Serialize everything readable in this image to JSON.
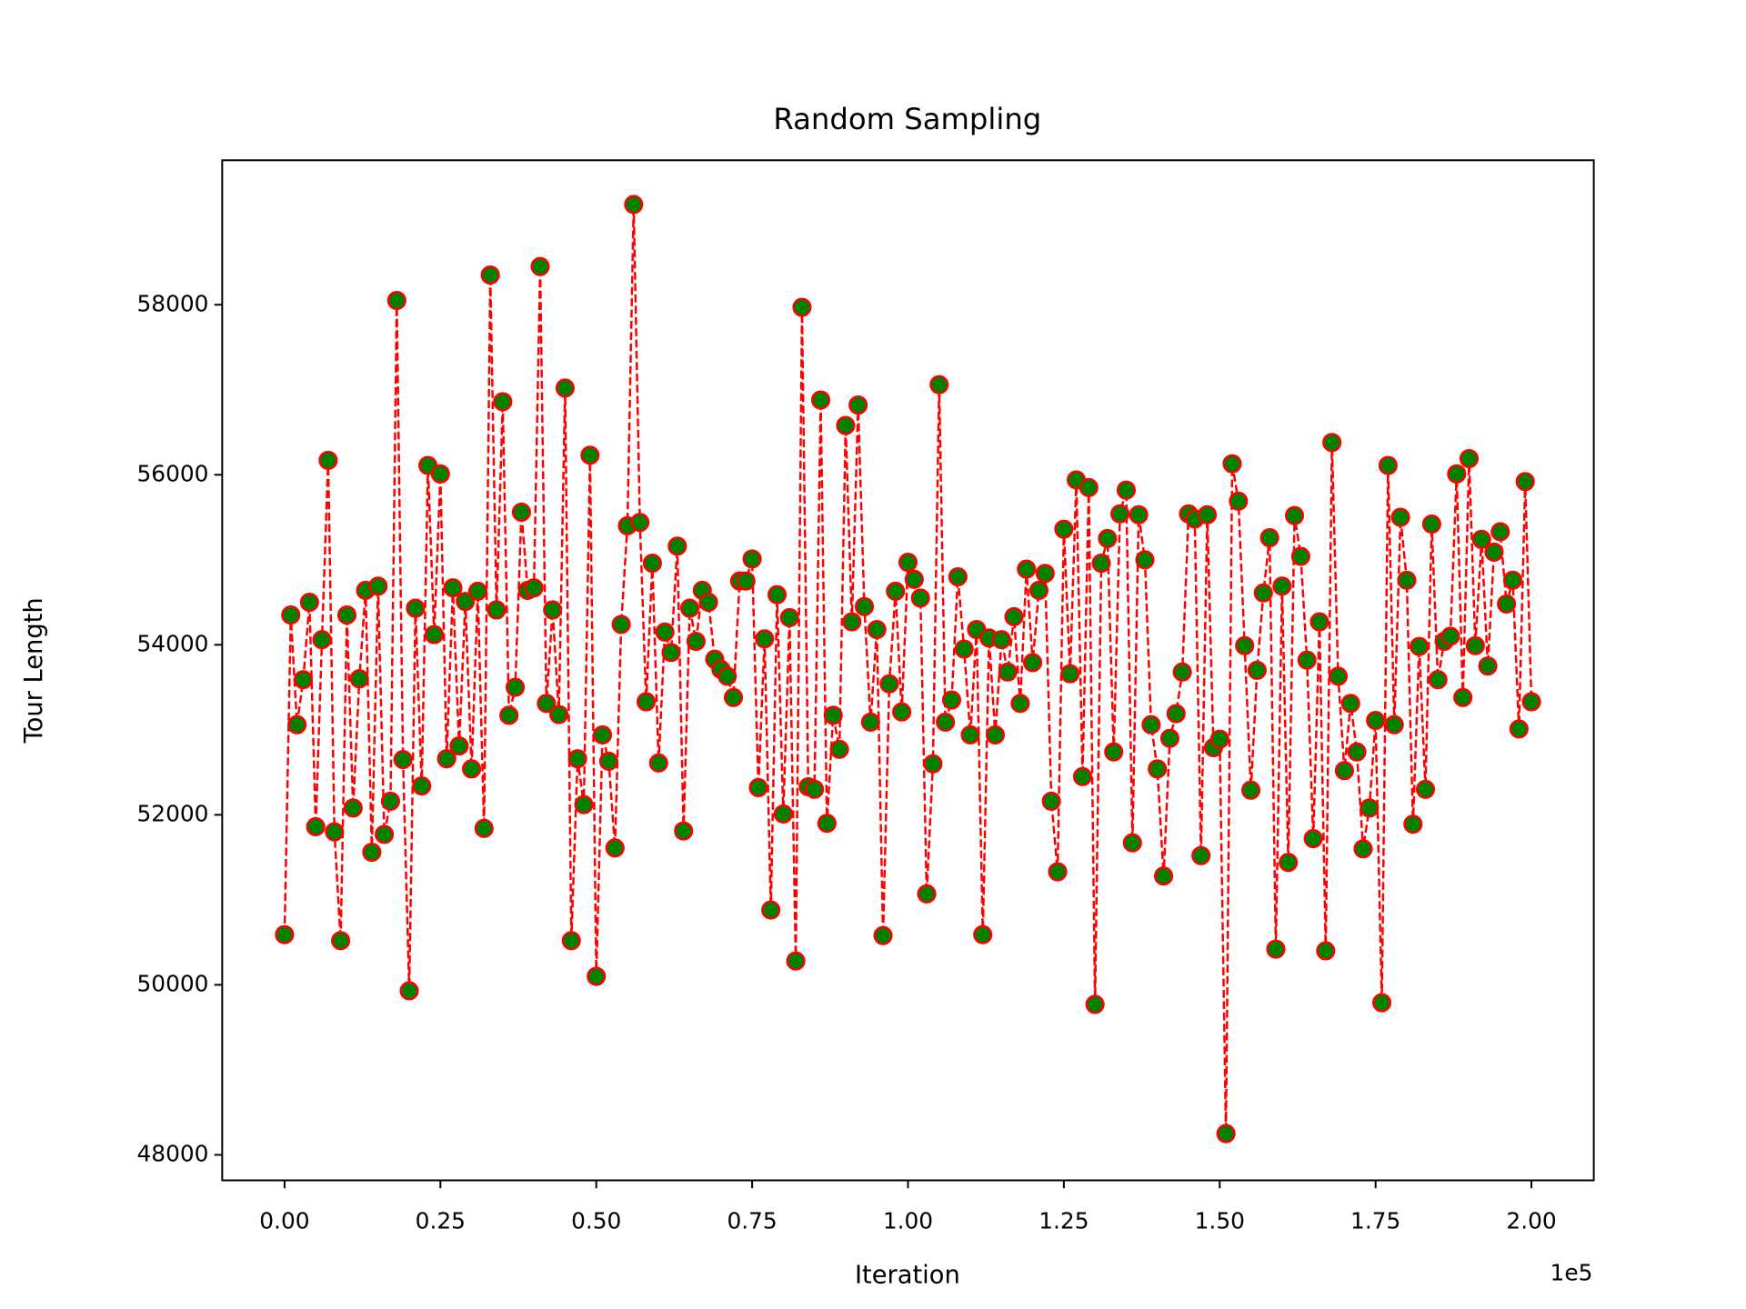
{
  "chart_data": {
    "type": "line",
    "title": "Random Sampling",
    "x_label": "Iteration",
    "y_label": "Tour Length",
    "x_offset_label": "1e5",
    "color": "#ff0000",
    "marker_face_color": "#008000",
    "line_style": "dashed",
    "marker": "circle",
    "xlim": [
      -10000,
      210000
    ],
    "ylim": [
      47700,
      59700
    ],
    "xticks": [
      {
        "value": 0,
        "label": "0.00"
      },
      {
        "value": 25000,
        "label": "0.25"
      },
      {
        "value": 50000,
        "label": "0.50"
      },
      {
        "value": 75000,
        "label": "0.75"
      },
      {
        "value": 100000,
        "label": "1.00"
      },
      {
        "value": 125000,
        "label": "1.25"
      },
      {
        "value": 150000,
        "label": "1.50"
      },
      {
        "value": 175000,
        "label": "1.75"
      },
      {
        "value": 200000,
        "label": "2.00"
      }
    ],
    "yticks": [
      48000,
      50000,
      52000,
      54000,
      56000,
      58000
    ],
    "x": [
      0,
      1000,
      2000,
      3000,
      4000,
      5000,
      6000,
      7000,
      8000,
      9000,
      10000,
      11000,
      12000,
      13000,
      14000,
      15000,
      16000,
      17000,
      18000,
      19000,
      20000,
      21000,
      22000,
      23000,
      24000,
      25000,
      26000,
      27000,
      28000,
      29000,
      30000,
      31000,
      32000,
      33000,
      34000,
      35000,
      36000,
      37000,
      38000,
      39000,
      40000,
      41000,
      42000,
      43000,
      44000,
      45000,
      46000,
      47000,
      48000,
      49000,
      50000,
      51000,
      52000,
      53000,
      54000,
      55000,
      56000,
      57000,
      58000,
      59000,
      60000,
      61000,
      62000,
      63000,
      64000,
      65000,
      66000,
      67000,
      68000,
      69000,
      70000,
      71000,
      72000,
      73000,
      74000,
      75000,
      76000,
      77000,
      78000,
      79000,
      80000,
      81000,
      82000,
      83000,
      84000,
      85000,
      86000,
      87000,
      88000,
      89000,
      90000,
      91000,
      92000,
      93000,
      94000,
      95000,
      96000,
      97000,
      98000,
      99000,
      100000,
      101000,
      102000,
      103000,
      104000,
      105000,
      106000,
      107000,
      108000,
      109000,
      110000,
      111000,
      112000,
      113000,
      114000,
      115000,
      116000,
      117000,
      118000,
      119000,
      120000,
      121000,
      122000,
      123000,
      124000,
      125000,
      126000,
      127000,
      128000,
      129000,
      130000,
      131000,
      132000,
      133000,
      134000,
      135000,
      136000,
      137000,
      138000,
      139000,
      140000,
      141000,
      142000,
      143000,
      144000,
      145000,
      146000,
      147000,
      148000,
      149000,
      150000,
      151000,
      152000,
      153000,
      154000,
      155000,
      156000,
      157000,
      158000,
      159000,
      160000,
      161000,
      162000,
      163000,
      164000,
      165000,
      166000,
      167000,
      168000,
      169000,
      170000,
      171000,
      172000,
      173000,
      174000,
      175000,
      176000,
      177000,
      178000,
      179000,
      180000,
      181000,
      182000,
      183000,
      184000,
      185000,
      186000,
      187000,
      188000,
      189000,
      190000,
      191000,
      192000,
      193000,
      194000,
      195000,
      196000,
      197000,
      198000,
      199000,
      200000
    ],
    "values": [
      50590,
      54350,
      53060,
      53590,
      54500,
      51860,
      54060,
      56170,
      51800,
      50520,
      54350,
      52080,
      53600,
      54640,
      51560,
      54690,
      51770,
      52160,
      58050,
      52650,
      49930,
      54430,
      52340,
      56110,
      54120,
      56010,
      52660,
      54670,
      52810,
      54510,
      52540,
      54630,
      51840,
      58350,
      54410,
      56860,
      53170,
      53500,
      55560,
      54640,
      54670,
      58450,
      53310,
      54410,
      53180,
      57020,
      50520,
      52660,
      52120,
      56230,
      50100,
      52940,
      52630,
      51610,
      54240,
      55400,
      59180,
      55440,
      53330,
      54960,
      52610,
      54150,
      53910,
      55160,
      51810,
      54430,
      54040,
      54640,
      54500,
      53830,
      53710,
      53630,
      53380,
      54750,
      54750,
      55010,
      52320,
      54070,
      50880,
      54590,
      52010,
      54320,
      50280,
      57970,
      52330,
      52300,
      56880,
      51900,
      53170,
      52770,
      56580,
      54270,
      56820,
      54450,
      53090,
      54180,
      50580,
      53540,
      54630,
      53210,
      54970,
      54770,
      54550,
      51070,
      52600,
      57060,
      53090,
      53350,
      54800,
      53950,
      52940,
      54180,
      50590,
      54080,
      52940,
      54060,
      53680,
      54330,
      53310,
      54890,
      53790,
      54640,
      54840,
      52160,
      51330,
      55360,
      53660,
      55940,
      52450,
      55850,
      49770,
      54960,
      55250,
      52740,
      55540,
      55820,
      51670,
      55530,
      55000,
      53060,
      52540,
      51280,
      52900,
      53190,
      53680,
      55540,
      55480,
      51520,
      55530,
      52790,
      52890,
      48250,
      56130,
      55690,
      53990,
      52290,
      53700,
      54610,
      55260,
      50420,
      54690,
      51440,
      55520,
      55040,
      53820,
      51720,
      54270,
      50400,
      56380,
      53630,
      52520,
      53310,
      52740,
      51600,
      52080,
      53110,
      49790,
      56110,
      53060,
      55500,
      54760,
      51890,
      53980,
      52300,
      55420,
      53590,
      54040,
      54100,
      56010,
      53380,
      56190,
      53990,
      55240,
      53750,
      55090,
      55330,
      54480,
      54760,
      53010,
      55920,
      53330
    ]
  }
}
